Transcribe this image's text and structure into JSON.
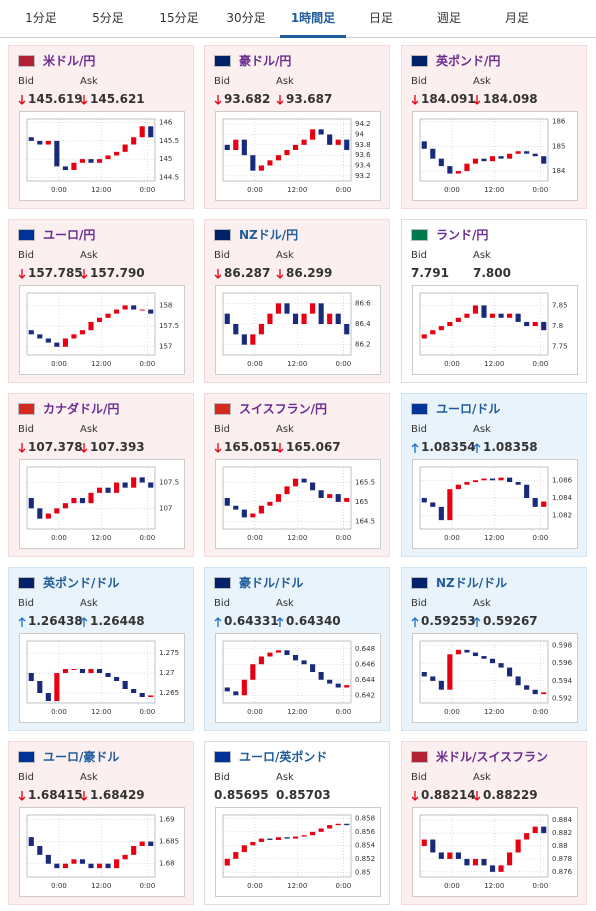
{
  "tabs": [
    {
      "label": "1分足"
    },
    {
      "label": "5分足"
    },
    {
      "label": "15分足"
    },
    {
      "label": "30分足"
    },
    {
      "label": "1時間足",
      "active": true
    },
    {
      "label": "日足"
    },
    {
      "label": "週足"
    },
    {
      "label": "月足"
    }
  ],
  "bid_label": "Bid",
  "ask_label": "Ask",
  "xticks": [
    "0:00",
    "12:00",
    "0:00"
  ],
  "cards": [
    {
      "name": "米ドル/円",
      "theme": "pink",
      "title_color": "#6b2c91",
      "direction": "down",
      "bid": "145.619",
      "ask": "145.621",
      "ylim": [
        144.4,
        146.1
      ],
      "yticks": [
        144.5,
        145,
        145.5,
        146
      ],
      "closes": [
        145.6,
        145.5,
        145.4,
        145.5,
        144.8,
        144.7,
        144.9,
        145.0,
        144.9,
        145.0,
        145.1,
        145.2,
        145.4,
        145.6,
        145.9,
        145.6
      ]
    },
    {
      "name": "豪ドル/円",
      "theme": "pink",
      "title_color": "#6b2c91",
      "direction": "down",
      "bid": "93.682",
      "ask": "93.687",
      "ylim": [
        93.1,
        94.3
      ],
      "yticks": [
        93.2,
        93.4,
        93.6,
        93.8,
        94,
        94.2
      ],
      "closes": [
        93.8,
        93.7,
        93.9,
        93.6,
        93.3,
        93.4,
        93.5,
        93.6,
        93.7,
        93.8,
        93.9,
        94.1,
        94.0,
        93.8,
        93.9,
        93.7
      ]
    },
    {
      "name": "英ポンド/円",
      "theme": "pink",
      "title_color": "#6b2c91",
      "direction": "down",
      "bid": "184.091",
      "ask": "184.098",
      "ylim": [
        183.6,
        186.1
      ],
      "yticks": [
        184,
        185,
        186
      ],
      "closes": [
        185.2,
        184.9,
        184.5,
        184.2,
        183.9,
        184.0,
        184.3,
        184.5,
        184.4,
        184.6,
        184.5,
        184.7,
        184.8,
        184.7,
        184.6,
        184.3
      ]
    },
    {
      "name": "ユーロ/円",
      "theme": "pink",
      "title_color": "#6b2c91",
      "direction": "down",
      "bid": "157.785",
      "ask": "157.790",
      "ylim": [
        156.8,
        158.3
      ],
      "yticks": [
        157,
        157.5,
        158
      ],
      "closes": [
        157.4,
        157.3,
        157.2,
        157.1,
        157.0,
        157.2,
        157.3,
        157.4,
        157.6,
        157.7,
        157.8,
        157.9,
        158.0,
        157.9,
        157.9,
        157.8
      ]
    },
    {
      "name": "NZドル/円",
      "theme": "pink",
      "title_color": "#1f5c99",
      "direction": "down",
      "bid": "86.287",
      "ask": "86.299",
      "ylim": [
        86.1,
        86.7
      ],
      "yticks": [
        86.2,
        86.4,
        86.6
      ],
      "closes": [
        86.5,
        86.4,
        86.3,
        86.2,
        86.3,
        86.4,
        86.5,
        86.6,
        86.5,
        86.4,
        86.5,
        86.6,
        86.4,
        86.5,
        86.4,
        86.3
      ]
    },
    {
      "name": "ランド/円",
      "theme": "white",
      "title_color": "#6b2c91",
      "direction": null,
      "bid": "7.791",
      "ask": "7.800",
      "ylim": [
        7.73,
        7.88
      ],
      "yticks": [
        7.75,
        7.8,
        7.85
      ],
      "closes": [
        7.77,
        7.78,
        7.79,
        7.8,
        7.81,
        7.82,
        7.83,
        7.85,
        7.82,
        7.83,
        7.82,
        7.83,
        7.81,
        7.8,
        7.81,
        7.79
      ]
    },
    {
      "name": "カナダドル/円",
      "theme": "pink",
      "title_color": "#6b2c91",
      "direction": "down",
      "bid": "107.378",
      "ask": "107.393",
      "ylim": [
        106.6,
        107.8
      ],
      "yticks": [
        107,
        107.5
      ],
      "closes": [
        107.2,
        107.0,
        106.8,
        106.9,
        107.0,
        107.1,
        107.2,
        107.1,
        107.3,
        107.4,
        107.3,
        107.5,
        107.4,
        107.6,
        107.5,
        107.4
      ]
    },
    {
      "name": "スイスフラン/円",
      "theme": "pink",
      "title_color": "#6b2c91",
      "direction": "down",
      "bid": "165.051",
      "ask": "165.067",
      "ylim": [
        164.3,
        165.9
      ],
      "yticks": [
        164.5,
        165,
        165.5
      ],
      "closes": [
        165.1,
        164.9,
        164.8,
        164.6,
        164.7,
        164.9,
        165.0,
        165.2,
        165.4,
        165.6,
        165.5,
        165.3,
        165.1,
        165.2,
        165.0,
        165.1
      ]
    },
    {
      "name": "ユーロ/ドル",
      "theme": "blue",
      "title_color": "#1f5c99",
      "direction": "up",
      "bid": "1.08354",
      "ask": "1.08358",
      "ylim": [
        1.0805,
        1.0875
      ],
      "yticks": [
        1.082,
        1.084,
        1.086
      ],
      "closes": [
        1.084,
        1.0835,
        1.083,
        1.0815,
        1.085,
        1.0855,
        1.0858,
        1.086,
        1.0862,
        1.086,
        1.0863,
        1.0858,
        1.0855,
        1.084,
        1.083,
        1.0836
      ]
    },
    {
      "name": "英ポンド/ドル",
      "theme": "blue",
      "title_color": "#1f5c99",
      "direction": "up",
      "bid": "1.26438",
      "ask": "1.26448",
      "ylim": [
        1.2625,
        1.278
      ],
      "yticks": [
        1.265,
        1.27,
        1.275
      ],
      "closes": [
        1.27,
        1.268,
        1.265,
        1.263,
        1.27,
        1.271,
        1.271,
        1.27,
        1.271,
        1.27,
        1.269,
        1.268,
        1.266,
        1.265,
        1.264,
        1.2644
      ]
    },
    {
      "name": "豪ドル/ドル",
      "theme": "blue",
      "title_color": "#1f5c99",
      "direction": "up",
      "bid": "0.64331",
      "ask": "0.64340",
      "ylim": [
        0.641,
        0.649
      ],
      "yticks": [
        0.642,
        0.644,
        0.646,
        0.648
      ],
      "closes": [
        0.643,
        0.6425,
        0.642,
        0.644,
        0.646,
        0.647,
        0.6475,
        0.6478,
        0.6472,
        0.6465,
        0.646,
        0.645,
        0.644,
        0.6435,
        0.643,
        0.6433
      ]
    },
    {
      "name": "NZドル/ドル",
      "theme": "blue",
      "title_color": "#1f5c99",
      "direction": "up",
      "bid": "0.59253",
      "ask": "0.59267",
      "ylim": [
        0.5915,
        0.5985
      ],
      "yticks": [
        0.592,
        0.594,
        0.596,
        0.598
      ],
      "closes": [
        0.595,
        0.5945,
        0.594,
        0.593,
        0.597,
        0.5975,
        0.5972,
        0.5968,
        0.5965,
        0.596,
        0.5955,
        0.5945,
        0.5935,
        0.593,
        0.5925,
        0.5927
      ]
    },
    {
      "name": "ユーロ/豪ドル",
      "theme": "pink",
      "title_color": "#1f5c99",
      "direction": "down",
      "bid": "1.68415",
      "ask": "1.68429",
      "ylim": [
        1.677,
        1.691
      ],
      "yticks": [
        1.68,
        1.685,
        1.69
      ],
      "closes": [
        1.686,
        1.684,
        1.682,
        1.68,
        1.679,
        1.68,
        1.681,
        1.68,
        1.679,
        1.68,
        1.679,
        1.681,
        1.682,
        1.684,
        1.685,
        1.684
      ]
    },
    {
      "name": "ユーロ/英ポンド",
      "theme": "white",
      "title_color": "#1f5c99",
      "direction": null,
      "bid": "0.85695",
      "ask": "0.85703",
      "ylim": [
        0.8493,
        0.8585
      ],
      "yticks": [
        0.85,
        0.852,
        0.854,
        0.856,
        0.858
      ],
      "closes": [
        0.851,
        0.852,
        0.853,
        0.854,
        0.8545,
        0.855,
        0.8548,
        0.8552,
        0.855,
        0.8553,
        0.8555,
        0.856,
        0.8565,
        0.857,
        0.8572,
        0.857
      ]
    },
    {
      "name": "米ドル/スイスフラン",
      "theme": "pink",
      "title_color": "#6b2c91",
      "direction": "down",
      "bid": "0.88214",
      "ask": "0.88229",
      "ylim": [
        0.8752,
        0.8848
      ],
      "yticks": [
        0.876,
        0.878,
        0.88,
        0.882,
        0.884
      ],
      "closes": [
        0.88,
        0.881,
        0.879,
        0.878,
        0.879,
        0.878,
        0.877,
        0.878,
        0.877,
        0.876,
        0.877,
        0.879,
        0.881,
        0.882,
        0.883,
        0.882
      ]
    }
  ]
}
